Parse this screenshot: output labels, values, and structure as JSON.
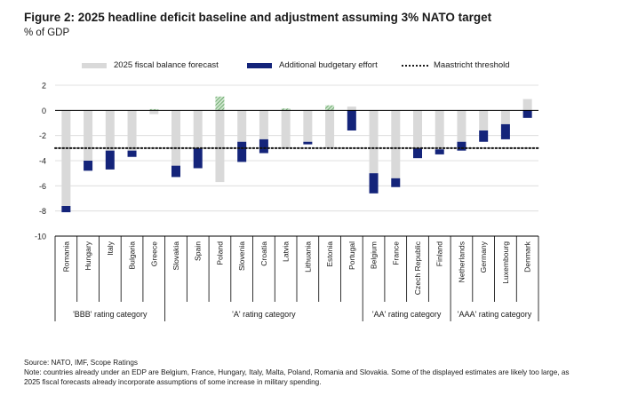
{
  "figure": {
    "title": "Figure 2: 2025 headline deficit baseline and adjustment assuming 3% NATO target",
    "subtitle": "% of GDP"
  },
  "legend": {
    "baseline_label": "2025 fiscal balance forecast",
    "effort_label": "Additional budgetary effort",
    "threshold_label": "Maastricht threshold"
  },
  "colors": {
    "baseline": "#d9d9d9",
    "effort": "#14247a",
    "positive_hatch": "#6aaa6a",
    "axis": "#000000",
    "grid": "#d9d9d9"
  },
  "chart_data": {
    "type": "bar",
    "ylim": [
      -10,
      2
    ],
    "yticks": [
      2,
      0,
      -2,
      -4,
      -6,
      -8,
      -10
    ],
    "threshold": -3,
    "grid": true,
    "legend_position": "top",
    "categories": [
      "Romania",
      "Hungary",
      "Italy",
      "Bulgaria",
      "Greece",
      "Slovakia",
      "Spain",
      "Poland",
      "Slovenia",
      "Croatia",
      "Latvia",
      "Lithuania",
      "Estonia",
      "Portugal",
      "Belgium",
      "France",
      "Czech Republic",
      "Finland",
      "Netherlands",
      "Germany",
      "Luxembourg",
      "Denmark"
    ],
    "series": [
      {
        "name": "2025 fiscal balance forecast",
        "values": [
          -7.6,
          -4.0,
          -3.2,
          -3.2,
          -0.3,
          -4.4,
          -3.0,
          -5.7,
          -2.5,
          -2.3,
          -3.0,
          -2.5,
          -3.0,
          0.3,
          -5.0,
          -5.4,
          -3.0,
          -3.1,
          -2.5,
          -1.6,
          -1.1,
          0.9
        ]
      },
      {
        "name": "Additional budgetary effort",
        "values": [
          0.5,
          0.8,
          1.5,
          0.5,
          0.0,
          0.9,
          1.6,
          0.0,
          1.6,
          1.1,
          0.0,
          0.2,
          0.0,
          1.6,
          1.6,
          0.7,
          0.8,
          0.4,
          0.7,
          0.9,
          1.2,
          0.6
        ]
      }
    ],
    "positive_increase": [
      0,
      0,
      0,
      0,
      0.1,
      0,
      0,
      1.1,
      0,
      0,
      0.15,
      0,
      0.4,
      0,
      0,
      0,
      0,
      0,
      0,
      0,
      0,
      0
    ],
    "groups": [
      {
        "label": "'BBB' rating category",
        "count": 5
      },
      {
        "label": "'A' rating category",
        "count": 9
      },
      {
        "label": "'AA' rating category",
        "count": 4
      },
      {
        "label": "'AAA' rating category",
        "count": 4
      }
    ]
  },
  "footer": {
    "source": "Source: NATO, IMF, Scope Ratings",
    "note": "Note: countries already under an EDP are Belgium, France, Hungary, Italy, Malta, Poland, Romania and Slovakia. Some of the displayed estimates are likely too large, as 2025 fiscal forecasts already incorporate assumptions of some increase in military spending."
  }
}
